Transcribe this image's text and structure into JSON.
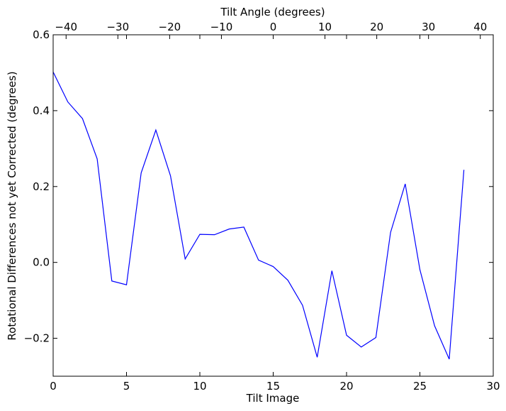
{
  "chart_data": {
    "type": "line",
    "xlabel": "Tilt Image",
    "ylabel": "Rotational Differences not yet Corrected (degrees)",
    "secondary_xlabel": "Tilt Angle (degrees)",
    "xlim": [
      0,
      30
    ],
    "ylim": [
      -0.3,
      0.6
    ],
    "secondary_xlim": [
      -42.5,
      42.5
    ],
    "x_ticks": [
      0,
      5,
      10,
      15,
      20,
      25,
      30
    ],
    "x_tick_labels": [
      "0",
      "5",
      "10",
      "15",
      "20",
      "25",
      "30"
    ],
    "y_ticks": [
      -0.2,
      0.0,
      0.2,
      0.4,
      0.6
    ],
    "y_tick_labels": [
      "−0.2",
      "0.0",
      "0.2",
      "0.4",
      "0.6"
    ],
    "secondary_x_ticks": [
      -40,
      -30,
      -20,
      -10,
      0,
      10,
      20,
      30,
      40
    ],
    "secondary_x_tick_labels": [
      "−40",
      "−30",
      "−20",
      "−10",
      "0",
      "10",
      "20",
      "30",
      "40"
    ],
    "grid": false,
    "legend": false,
    "series": [
      {
        "color": "#0000ff",
        "x": [
          0,
          1,
          2,
          3,
          4,
          5,
          6,
          7,
          8,
          9,
          10,
          11,
          12,
          13,
          14,
          15,
          16,
          17,
          18,
          19,
          20,
          21,
          22,
          23,
          24,
          25,
          26,
          27,
          28
        ],
        "values": [
          0.502,
          0.423,
          0.379,
          0.273,
          -0.049,
          -0.059,
          0.236,
          0.349,
          0.228,
          0.009,
          0.074,
          0.073,
          0.088,
          0.093,
          0.006,
          -0.011,
          -0.047,
          -0.113,
          -0.25,
          -0.022,
          -0.192,
          -0.223,
          -0.198,
          0.079,
          0.207,
          -0.019,
          -0.167,
          -0.255,
          0.244
        ]
      }
    ]
  }
}
